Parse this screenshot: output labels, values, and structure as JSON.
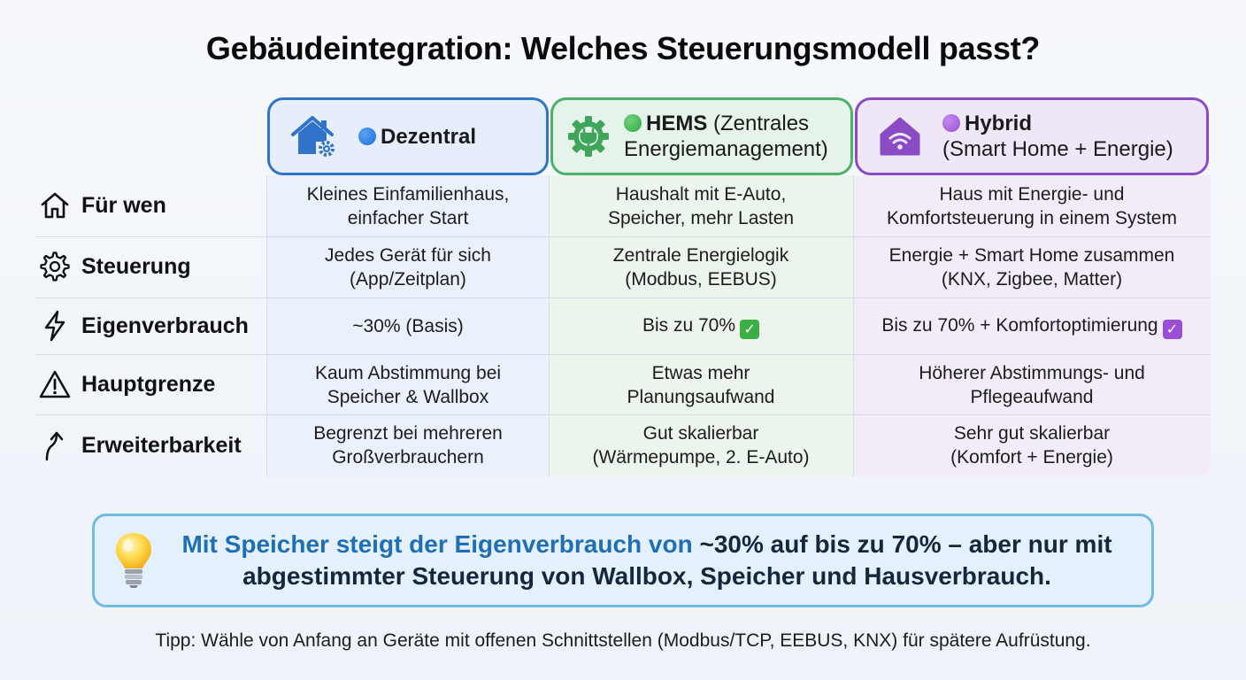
{
  "title": "Gebäudeintegration: Welches Steuerungsmodell passt?",
  "columns": [
    {
      "dot_color": "#1f6fd8",
      "name": "Dezentral",
      "rest_line1": "",
      "line2": ""
    },
    {
      "dot_color": "#2eaa3f",
      "name": "HEMS",
      "rest_line1": " (Zentrales",
      "line2": "Energiemanagement)"
    },
    {
      "dot_color": "#9b4fd6",
      "name": "Hybrid",
      "rest_line1": "",
      "line2": "(Smart Home + Energie)"
    }
  ],
  "rows": [
    {
      "label": "Für wen",
      "icon": "house-icon",
      "cells": [
        [
          "Kleines Einfamilienhaus,",
          "einfacher Start"
        ],
        [
          "Haushalt mit E-Auto,",
          "Speicher, mehr Lasten"
        ],
        [
          "Haus mit Energie- und",
          "Komfortsteuerung in einem System"
        ]
      ]
    },
    {
      "label": "Steuerung",
      "icon": "gear-icon",
      "cells": [
        [
          "Jedes Gerät für sich",
          "(App/Zeitplan)"
        ],
        [
          "Zentrale Energielogik",
          "(Modbus, EEBUS)"
        ],
        [
          "Energie + Smart Home zusammen",
          "(KNX, Zigbee, Matter)"
        ]
      ]
    },
    {
      "label": "Eigenverbrauch",
      "icon": "lightning-icon",
      "cells": [
        [
          "~30% (Basis)",
          ""
        ],
        [
          "Bis zu 70%",
          ""
        ],
        [
          "Bis zu 70% + Komfortoptimierung",
          ""
        ]
      ]
    },
    {
      "label": "Hauptgrenze",
      "icon": "warning-icon",
      "cells": [
        [
          "Kaum Abstimmung bei",
          "Speicher & Wallbox"
        ],
        [
          "Etwas mehr",
          "Planungsaufwand"
        ],
        [
          "Höherer Abstimmungs- und",
          "Pflegeaufwand"
        ]
      ]
    },
    {
      "label": "Erweiterbarkeit",
      "icon": "arrow-up-icon",
      "cells": [
        [
          "Begrenzt bei mehreren",
          "Großverbrauchern"
        ],
        [
          "Gut skalierbar",
          "(Wärmepumpe, 2. E-Auto)"
        ],
        [
          "Sehr gut skalierbar",
          "(Komfort + Energie)"
        ]
      ]
    }
  ],
  "check_colors": {
    "green": "#3cae45",
    "purple": "#9b4fd6"
  },
  "callout": {
    "line1_blue": "Mit Speicher steigt der Eigenverbrauch von",
    "line1_dark": " ~30% auf bis zu 70% – aber nur mit",
    "line2": "abgestimmter Steuerung von Wallbox, Speicher und Hausverbrauch.",
    "icon": "lightbulb-icon"
  },
  "tip": "Tipp: Wähle von Anfang an Geräte mit offenen Schnittstellen (Modbus/TCP, EEBUS, KNX) für spätere Aufrüstung."
}
